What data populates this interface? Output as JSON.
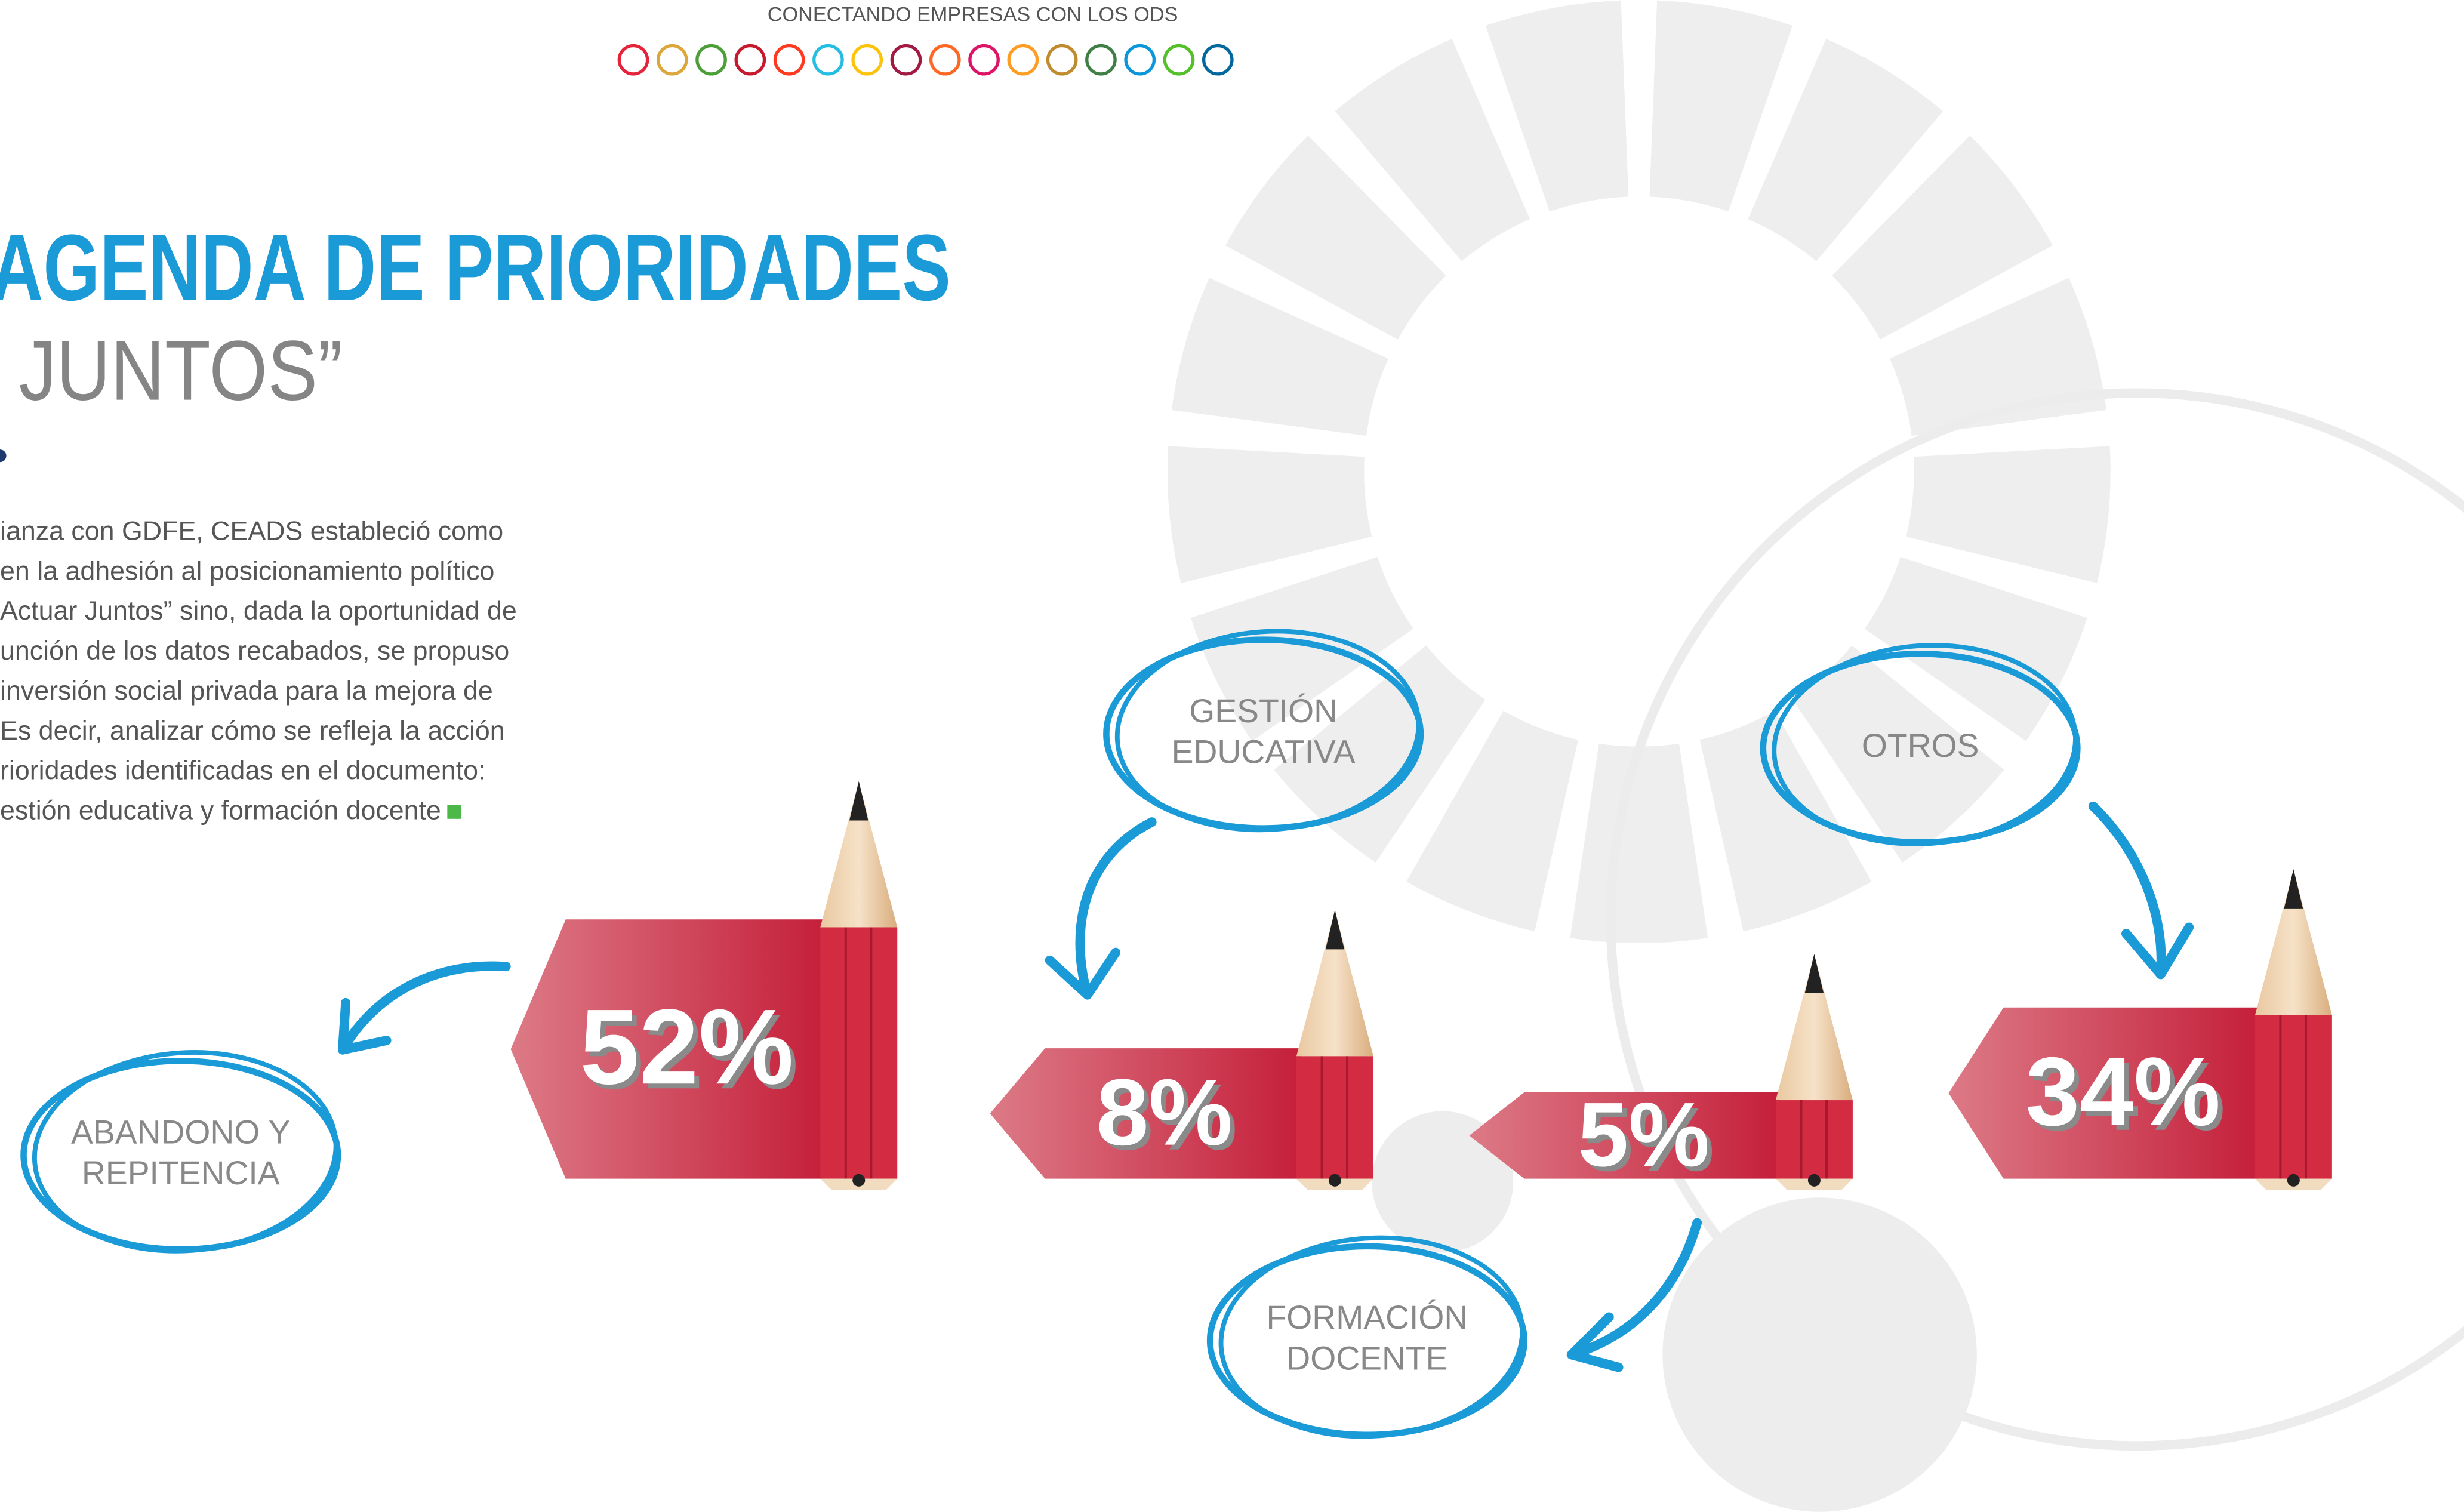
{
  "header": {
    "text": "CONECTANDO EMPRESAS CON LOS ODS"
  },
  "title": {
    "line1": "AGENDA DE PRIORIDADES",
    "line2": "JUNTOS”"
  },
  "paragraph": [
    "ianza con GDFE, CEADS estableció como",
    "en la adhesión al posicionamiento político",
    "Actuar Juntos” sino, dada la oportunidad de",
    "unción de los datos recabados, se propuso",
    "inversión social privada para la mejora de",
    "Es decir, analizar cómo se refleja la acción",
    "rioridades identificadas en el documento:",
    "estión educativa y formación docente"
  ],
  "items": [
    {
      "value": "52%",
      "label": [
        "ABANDONO Y",
        "REPITENCIA"
      ]
    },
    {
      "value": "8%",
      "label": [
        "GESTIÓN",
        "EDUCATIVA"
      ]
    },
    {
      "value": "5%",
      "label": [
        "FORMACIÓN",
        "DOCENTE"
      ]
    },
    {
      "value": "34%",
      "label": [
        "OTROS"
      ]
    }
  ]
}
